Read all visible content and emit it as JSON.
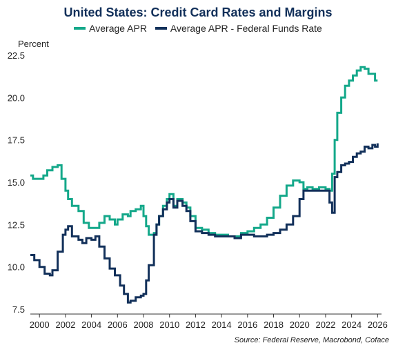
{
  "chart_data": {
    "type": "line",
    "title": "United States: Credit Card Rates and Margins",
    "y_unit_label": "Percent",
    "source": "Source: Federal Reserve, Macrobond, Coface",
    "xlim": [
      1999.3,
      2026.3
    ],
    "ylim": [
      7.5,
      22.5
    ],
    "x_ticks": [
      "2000",
      "2002",
      "2004",
      "2006",
      "2008",
      "2010",
      "2012",
      "2014",
      "2016",
      "2018",
      "2020",
      "2022",
      "2024",
      "2026"
    ],
    "y_ticks": [
      "7.5",
      "10.0",
      "12.5",
      "15.0",
      "17.5",
      "20.0",
      "22.5"
    ],
    "grid": false,
    "legend_position": "top",
    "series": [
      {
        "name": "Average APR",
        "color": "#14a88a",
        "points": [
          [
            1999.3,
            15.4
          ],
          [
            1999.5,
            15.2
          ],
          [
            2000.0,
            15.2
          ],
          [
            2000.3,
            15.4
          ],
          [
            2000.6,
            15.7
          ],
          [
            2001.0,
            15.9
          ],
          [
            2001.4,
            16.0
          ],
          [
            2001.7,
            15.2
          ],
          [
            2002.0,
            14.5
          ],
          [
            2002.2,
            14.0
          ],
          [
            2002.5,
            13.6
          ],
          [
            2003.0,
            13.3
          ],
          [
            2003.4,
            12.6
          ],
          [
            2003.8,
            12.3
          ],
          [
            2004.2,
            12.3
          ],
          [
            2004.6,
            12.6
          ],
          [
            2005.0,
            13.0
          ],
          [
            2005.4,
            12.8
          ],
          [
            2005.8,
            12.5
          ],
          [
            2006.0,
            12.8
          ],
          [
            2006.4,
            13.1
          ],
          [
            2006.8,
            13.0
          ],
          [
            2007.0,
            13.3
          ],
          [
            2007.4,
            13.4
          ],
          [
            2007.8,
            13.6
          ],
          [
            2008.0,
            13.0
          ],
          [
            2008.2,
            12.4
          ],
          [
            2008.4,
            11.9
          ],
          [
            2008.8,
            12.0
          ],
          [
            2009.0,
            12.5
          ],
          [
            2009.2,
            13.0
          ],
          [
            2009.5,
            13.6
          ],
          [
            2009.8,
            14.0
          ],
          [
            2010.0,
            14.3
          ],
          [
            2010.3,
            13.6
          ],
          [
            2010.6,
            14.0
          ],
          [
            2011.0,
            13.8
          ],
          [
            2011.3,
            13.5
          ],
          [
            2011.6,
            13.0
          ],
          [
            2012.0,
            12.3
          ],
          [
            2012.5,
            12.2
          ],
          [
            2013.0,
            12.0
          ],
          [
            2013.5,
            11.9
          ],
          [
            2014.0,
            11.9
          ],
          [
            2014.5,
            11.8
          ],
          [
            2015.0,
            11.8
          ],
          [
            2015.5,
            12.0
          ],
          [
            2016.0,
            12.1
          ],
          [
            2016.5,
            12.3
          ],
          [
            2017.0,
            12.5
          ],
          [
            2017.5,
            12.9
          ],
          [
            2018.0,
            13.5
          ],
          [
            2018.5,
            14.2
          ],
          [
            2019.0,
            14.8
          ],
          [
            2019.5,
            15.1
          ],
          [
            2020.0,
            15.0
          ],
          [
            2020.3,
            14.6
          ],
          [
            2020.6,
            14.7
          ],
          [
            2021.0,
            14.6
          ],
          [
            2021.5,
            14.7
          ],
          [
            2022.0,
            14.6
          ],
          [
            2022.3,
            14.5
          ],
          [
            2022.5,
            15.5
          ],
          [
            2022.7,
            17.5
          ],
          [
            2022.9,
            19.1
          ],
          [
            2023.2,
            20.0
          ],
          [
            2023.5,
            20.7
          ],
          [
            2023.8,
            21.0
          ],
          [
            2024.1,
            21.3
          ],
          [
            2024.4,
            21.6
          ],
          [
            2024.7,
            21.8
          ],
          [
            2025.0,
            21.7
          ],
          [
            2025.3,
            21.4
          ],
          [
            2025.6,
            21.4
          ],
          [
            2025.8,
            21.0
          ],
          [
            2026.0,
            21.0
          ]
        ]
      },
      {
        "name": "Average APR - Federal Funds Rate",
        "color": "#12305a",
        "points": [
          [
            1999.3,
            10.7
          ],
          [
            1999.6,
            10.4
          ],
          [
            2000.0,
            10.0
          ],
          [
            2000.4,
            9.6
          ],
          [
            2000.8,
            9.5
          ],
          [
            2001.0,
            9.8
          ],
          [
            2001.4,
            10.9
          ],
          [
            2001.8,
            11.9
          ],
          [
            2002.0,
            12.2
          ],
          [
            2002.2,
            12.4
          ],
          [
            2002.5,
            11.8
          ],
          [
            2003.0,
            11.6
          ],
          [
            2003.3,
            11.4
          ],
          [
            2003.6,
            11.7
          ],
          [
            2004.0,
            11.6
          ],
          [
            2004.3,
            11.8
          ],
          [
            2004.6,
            11.2
          ],
          [
            2005.0,
            10.5
          ],
          [
            2005.4,
            9.9
          ],
          [
            2005.8,
            9.5
          ],
          [
            2006.2,
            8.9
          ],
          [
            2006.5,
            8.4
          ],
          [
            2006.8,
            7.9
          ],
          [
            2007.0,
            8.0
          ],
          [
            2007.4,
            8.2
          ],
          [
            2007.8,
            8.3
          ],
          [
            2008.0,
            8.4
          ],
          [
            2008.2,
            9.2
          ],
          [
            2008.4,
            10.1
          ],
          [
            2008.8,
            11.9
          ],
          [
            2009.0,
            12.5
          ],
          [
            2009.2,
            13.0
          ],
          [
            2009.5,
            13.4
          ],
          [
            2009.8,
            13.8
          ],
          [
            2010.0,
            14.0
          ],
          [
            2010.3,
            13.5
          ],
          [
            2010.6,
            13.9
          ],
          [
            2011.0,
            13.6
          ],
          [
            2011.3,
            13.3
          ],
          [
            2011.6,
            12.7
          ],
          [
            2012.0,
            12.1
          ],
          [
            2012.5,
            12.0
          ],
          [
            2013.0,
            11.9
          ],
          [
            2013.5,
            11.8
          ],
          [
            2014.0,
            11.8
          ],
          [
            2014.5,
            11.8
          ],
          [
            2015.0,
            11.7
          ],
          [
            2015.5,
            11.9
          ],
          [
            2016.0,
            11.9
          ],
          [
            2016.5,
            11.8
          ],
          [
            2017.0,
            11.8
          ],
          [
            2017.5,
            11.9
          ],
          [
            2018.0,
            12.0
          ],
          [
            2018.5,
            12.2
          ],
          [
            2019.0,
            12.5
          ],
          [
            2019.5,
            13.0
          ],
          [
            2020.0,
            14.0
          ],
          [
            2020.3,
            14.5
          ],
          [
            2020.6,
            14.5
          ],
          [
            2021.0,
            14.5
          ],
          [
            2021.5,
            14.5
          ],
          [
            2022.0,
            14.5
          ],
          [
            2022.3,
            13.8
          ],
          [
            2022.5,
            13.2
          ],
          [
            2022.7,
            15.3
          ],
          [
            2022.9,
            15.6
          ],
          [
            2023.2,
            16.0
          ],
          [
            2023.5,
            16.1
          ],
          [
            2023.8,
            16.2
          ],
          [
            2024.1,
            16.5
          ],
          [
            2024.4,
            16.7
          ],
          [
            2024.7,
            16.8
          ],
          [
            2025.0,
            17.1
          ],
          [
            2025.3,
            17.0
          ],
          [
            2025.6,
            17.2
          ],
          [
            2025.8,
            17.1
          ],
          [
            2026.0,
            17.3
          ]
        ]
      }
    ]
  }
}
